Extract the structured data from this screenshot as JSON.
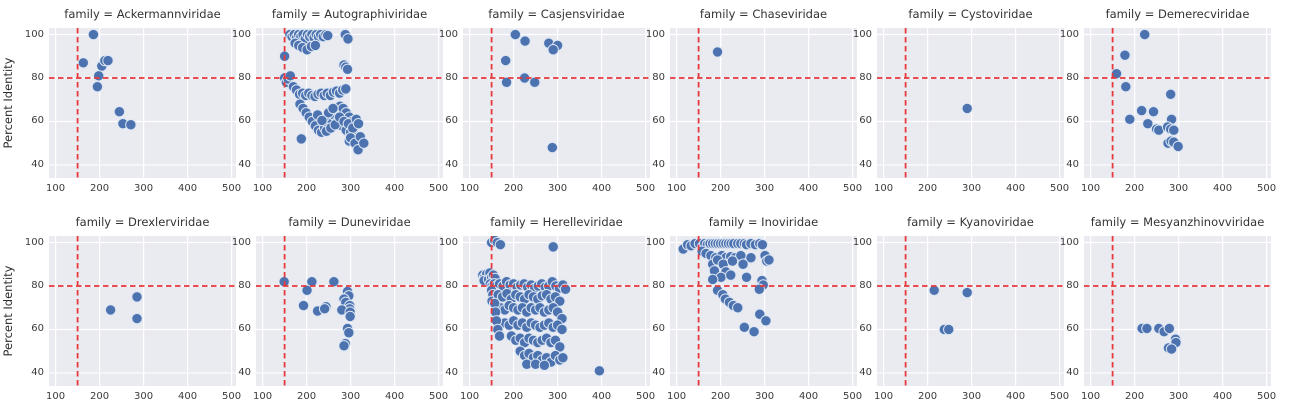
{
  "figure": {
    "ylabel": "Percent Identity",
    "facet_variable": "family",
    "rows": 2,
    "cols": 6
  },
  "colors": {
    "plot_bg": "#eaeaf1",
    "grid": "#ffffff",
    "point": "#4c72b0",
    "point_edge": "#dce6f2",
    "ref_line": "#e8393c",
    "text": "#2e2e2e"
  },
  "axes": {
    "x_ticks": [
      100,
      200,
      300,
      400,
      500
    ],
    "y_ticks": [
      100,
      80,
      60,
      40
    ],
    "xlim": [
      85,
      510
    ],
    "ylim": [
      34,
      103
    ],
    "ref_vline_x": 150,
    "ref_hline_y": 80,
    "grid": "on"
  },
  "chart_data": [
    {
      "type": "scatter",
      "family": "Ackermannviridae",
      "title": "family = Ackermannviridae",
      "points": [
        [
          186,
          100
        ],
        [
          163,
          87
        ],
        [
          205,
          85.5
        ],
        [
          212,
          88
        ],
        [
          219,
          88
        ],
        [
          198,
          81
        ],
        [
          195,
          76
        ],
        [
          245,
          64.5
        ],
        [
          253,
          59
        ],
        [
          271,
          58.5
        ]
      ]
    },
    {
      "type": "scatter",
      "family": "Autographiviridae",
      "title": "family = Autographiviridae",
      "points": [
        [
          162,
          100
        ],
        [
          167,
          99
        ],
        [
          172,
          100
        ],
        [
          177,
          98.5
        ],
        [
          182,
          100
        ],
        [
          187,
          99
        ],
        [
          192,
          100
        ],
        [
          197,
          98
        ],
        [
          202,
          100
        ],
        [
          207,
          99
        ],
        [
          212,
          100
        ],
        [
          217,
          98.5
        ],
        [
          222,
          100
        ],
        [
          227,
          99
        ],
        [
          232,
          100
        ],
        [
          238,
          99
        ],
        [
          244,
          100
        ],
        [
          248,
          99.5
        ],
        [
          174,
          96
        ],
        [
          182,
          95
        ],
        [
          191,
          94
        ],
        [
          201,
          93
        ],
        [
          211,
          94.5
        ],
        [
          220,
          95
        ],
        [
          288,
          100
        ],
        [
          294,
          98
        ],
        [
          150,
          90
        ],
        [
          150,
          80
        ],
        [
          154,
          78
        ],
        [
          158,
          79.5
        ],
        [
          163,
          81
        ],
        [
          285,
          86
        ],
        [
          289,
          85
        ],
        [
          293,
          84
        ],
        [
          170,
          76
        ],
        [
          177,
          74.5
        ],
        [
          184,
          72.5
        ],
        [
          191,
          73
        ],
        [
          198,
          72
        ],
        [
          205,
          73
        ],
        [
          212,
          72
        ],
        [
          219,
          71.5
        ],
        [
          226,
          72.5
        ],
        [
          233,
          73
        ],
        [
          240,
          72
        ],
        [
          247,
          73
        ],
        [
          254,
          72
        ],
        [
          261,
          73.5
        ],
        [
          268,
          74
        ],
        [
          275,
          73
        ],
        [
          282,
          74.5
        ],
        [
          289,
          75
        ],
        [
          185,
          68
        ],
        [
          192,
          66
        ],
        [
          199,
          64
        ],
        [
          206,
          62
        ],
        [
          213,
          60
        ],
        [
          220,
          58
        ],
        [
          227,
          56
        ],
        [
          234,
          55
        ],
        [
          241,
          57
        ],
        [
          248,
          59
        ],
        [
          255,
          61
        ],
        [
          262,
          63
        ],
        [
          269,
          65
        ],
        [
          276,
          67
        ],
        [
          283,
          66
        ],
        [
          290,
          64
        ],
        [
          297,
          62
        ],
        [
          304,
          60
        ],
        [
          311,
          58
        ],
        [
          240,
          62
        ],
        [
          250,
          64
        ],
        [
          260,
          66
        ],
        [
          270,
          60
        ],
        [
          280,
          58
        ],
        [
          290,
          56
        ],
        [
          300,
          55
        ],
        [
          308,
          54
        ],
        [
          225,
          63
        ],
        [
          235,
          60.5
        ],
        [
          245,
          55.5
        ],
        [
          255,
          57
        ],
        [
          265,
          58.5
        ],
        [
          275,
          62
        ],
        [
          285,
          60
        ],
        [
          295,
          59
        ],
        [
          305,
          57
        ],
        [
          313,
          61
        ],
        [
          318,
          59
        ],
        [
          188,
          52
        ],
        [
          297,
          51
        ],
        [
          300,
          52.5
        ],
        [
          310,
          50
        ],
        [
          317,
          47
        ],
        [
          322,
          53
        ],
        [
          330,
          50
        ]
      ]
    },
    {
      "type": "scatter",
      "family": "Casjensviridae",
      "title": "family = Casjensviridae",
      "points": [
        [
          204,
          100
        ],
        [
          226,
          97
        ],
        [
          280,
          96
        ],
        [
          300,
          95
        ],
        [
          290,
          93
        ],
        [
          182,
          88
        ],
        [
          184,
          78
        ],
        [
          225,
          80
        ],
        [
          248,
          78
        ],
        [
          288,
          48
        ]
      ]
    },
    {
      "type": "scatter",
      "family": "Chaseviridae",
      "title": "family = Chaseviridae",
      "points": [
        [
          193,
          92
        ]
      ]
    },
    {
      "type": "scatter",
      "family": "Cystoviridae",
      "title": "family = Cystoviridae",
      "points": [
        [
          290,
          66
        ]
      ]
    },
    {
      "type": "scatter",
      "family": "Demerecviridae",
      "title": "family = Demerecviridae",
      "points": [
        [
          223,
          100
        ],
        [
          178,
          90.5
        ],
        [
          159,
          82
        ],
        [
          180,
          76
        ],
        [
          282,
          72.5
        ],
        [
          216,
          65
        ],
        [
          243,
          64.5
        ],
        [
          189,
          61
        ],
        [
          230,
          59
        ],
        [
          284,
          61
        ],
        [
          250,
          56.5
        ],
        [
          255,
          56
        ],
        [
          275,
          57.5
        ],
        [
          282,
          56.5
        ],
        [
          289,
          56
        ],
        [
          276,
          50
        ],
        [
          283,
          51
        ],
        [
          289,
          50.5
        ],
        [
          299,
          48.5
        ]
      ]
    },
    {
      "type": "scatter",
      "family": "Drexlerviridae",
      "title": "family = Drexlerviridae",
      "points": [
        [
          225,
          69
        ],
        [
          285,
          75
        ],
        [
          285,
          65
        ]
      ]
    },
    {
      "type": "scatter",
      "family": "Duneviridae",
      "title": "family = Duneviridae",
      "points": [
        [
          149,
          82
        ],
        [
          212,
          82
        ],
        [
          262,
          82
        ],
        [
          201,
          78
        ],
        [
          193,
          71
        ],
        [
          244,
          70.5
        ],
        [
          225,
          68.5
        ],
        [
          241,
          69.5
        ],
        [
          293,
          77.5
        ],
        [
          296,
          75.5
        ],
        [
          285,
          74
        ],
        [
          289,
          72.5
        ],
        [
          298,
          71
        ],
        [
          298,
          69.5
        ],
        [
          280,
          69
        ],
        [
          299,
          68
        ],
        [
          299,
          66
        ],
        [
          293,
          60.5
        ],
        [
          296,
          58.5
        ],
        [
          288,
          53.5
        ],
        [
          285,
          52.5
        ]
      ]
    },
    {
      "type": "scatter",
      "family": "Herelleviridae",
      "title": "family = Herelleviridae",
      "points": [
        [
          150,
          100
        ],
        [
          157,
          101
        ],
        [
          163,
          100
        ],
        [
          170,
          99
        ],
        [
          290,
          98
        ],
        [
          130,
          85
        ],
        [
          134,
          84
        ],
        [
          139,
          85.5
        ],
        [
          133,
          82.5
        ],
        [
          143,
          83
        ],
        [
          146,
          86
        ],
        [
          150,
          84
        ],
        [
          154,
          85
        ],
        [
          158,
          83.5
        ],
        [
          147,
          81
        ],
        [
          151,
          80
        ],
        [
          156,
          81
        ],
        [
          161,
          80
        ],
        [
          150,
          78
        ],
        [
          153,
          76
        ],
        [
          151,
          73
        ],
        [
          168,
          81
        ],
        [
          176,
          80
        ],
        [
          184,
          82
        ],
        [
          192,
          80.5
        ],
        [
          200,
          81
        ],
        [
          208,
          79.5
        ],
        [
          216,
          80.5
        ],
        [
          224,
          81
        ],
        [
          232,
          79.5
        ],
        [
          240,
          80.5
        ],
        [
          248,
          79
        ],
        [
          256,
          80
        ],
        [
          264,
          81
        ],
        [
          272,
          79.5
        ],
        [
          280,
          80
        ],
        [
          288,
          82
        ],
        [
          296,
          80
        ],
        [
          304,
          79
        ],
        [
          312,
          80.5
        ],
        [
          318,
          78.5
        ],
        [
          165,
          76
        ],
        [
          175,
          75
        ],
        [
          185,
          76.5
        ],
        [
          195,
          74
        ],
        [
          205,
          76
        ],
        [
          215,
          75
        ],
        [
          225,
          74
        ],
        [
          235,
          76
        ],
        [
          245,
          75
        ],
        [
          255,
          74
        ],
        [
          265,
          75.5
        ],
        [
          275,
          76
        ],
        [
          285,
          74
        ],
        [
          295,
          75
        ],
        [
          305,
          73
        ],
        [
          170,
          70
        ],
        [
          180,
          69
        ],
        [
          190,
          71
        ],
        [
          200,
          70
        ],
        [
          210,
          69
        ],
        [
          220,
          70
        ],
        [
          230,
          68
        ],
        [
          240,
          70
        ],
        [
          250,
          69
        ],
        [
          260,
          70
        ],
        [
          270,
          68
        ],
        [
          280,
          69
        ],
        [
          290,
          70
        ],
        [
          300,
          68
        ],
        [
          310,
          65
        ],
        [
          180,
          63
        ],
        [
          190,
          62
        ],
        [
          200,
          64
        ],
        [
          210,
          62
        ],
        [
          220,
          63
        ],
        [
          230,
          61
        ],
        [
          240,
          63
        ],
        [
          250,
          62
        ],
        [
          260,
          61
        ],
        [
          270,
          62
        ],
        [
          280,
          63
        ],
        [
          290,
          61
        ],
        [
          300,
          62
        ],
        [
          310,
          60
        ],
        [
          195,
          57
        ],
        [
          205,
          55
        ],
        [
          215,
          56
        ],
        [
          225,
          54
        ],
        [
          235,
          56
        ],
        [
          245,
          55
        ],
        [
          255,
          54
        ],
        [
          265,
          55
        ],
        [
          275,
          56
        ],
        [
          285,
          54
        ],
        [
          295,
          55
        ],
        [
          305,
          52
        ],
        [
          215,
          50
        ],
        [
          225,
          48
        ],
        [
          235,
          49
        ],
        [
          245,
          47
        ],
        [
          255,
          48
        ],
        [
          265,
          46
        ],
        [
          275,
          47
        ],
        [
          285,
          45
        ],
        [
          295,
          48
        ],
        [
          305,
          46
        ],
        [
          312,
          47
        ],
        [
          157,
          72
        ],
        [
          159,
          68
        ],
        [
          161,
          64
        ],
        [
          164,
          60
        ],
        [
          168,
          57
        ],
        [
          230,
          44
        ],
        [
          250,
          44
        ],
        [
          270,
          43.5
        ],
        [
          395,
          41
        ]
      ]
    },
    {
      "type": "scatter",
      "family": "Inoviridae",
      "title": "family = Inoviridae",
      "points": [
        [
          115,
          97
        ],
        [
          125,
          99
        ],
        [
          133,
          98.5
        ],
        [
          142,
          99.5
        ],
        [
          152,
          99.5
        ],
        [
          159,
          98
        ],
        [
          164,
          99.5
        ],
        [
          170,
          99
        ],
        [
          176,
          99.5
        ],
        [
          182,
          99.5
        ],
        [
          188,
          99.5
        ],
        [
          194,
          99.5
        ],
        [
          200,
          99.5
        ],
        [
          206,
          99.5
        ],
        [
          212,
          99.5
        ],
        [
          218,
          99.5
        ],
        [
          224,
          99.5
        ],
        [
          230,
          99.5
        ],
        [
          239,
          99.5
        ],
        [
          246,
          99.5
        ],
        [
          254,
          99.5
        ],
        [
          259,
          99
        ],
        [
          269,
          99.5
        ],
        [
          279,
          99
        ],
        [
          289,
          99.5
        ],
        [
          295,
          99
        ],
        [
          158,
          96
        ],
        [
          167,
          95
        ],
        [
          178,
          94
        ],
        [
          189,
          93
        ],
        [
          203,
          94
        ],
        [
          212,
          93
        ],
        [
          223,
          93.5
        ],
        [
          233,
          93
        ],
        [
          246,
          94
        ],
        [
          269,
          93
        ],
        [
          301,
          94
        ],
        [
          305,
          91.5
        ],
        [
          182,
          90
        ],
        [
          193,
          92
        ],
        [
          206,
          90
        ],
        [
          227,
          91.5
        ],
        [
          251,
          90
        ],
        [
          310,
          92
        ],
        [
          186,
          87
        ],
        [
          212,
          86.5
        ],
        [
          201,
          84
        ],
        [
          223,
          85
        ],
        [
          259,
          84
        ],
        [
          182,
          83
        ],
        [
          294,
          82.5
        ],
        [
          297,
          80.5
        ],
        [
          288,
          78.5
        ],
        [
          193,
          78
        ],
        [
          205,
          76
        ],
        [
          211,
          74
        ],
        [
          220,
          72.5
        ],
        [
          229,
          71
        ],
        [
          239,
          70
        ],
        [
          289,
          67
        ],
        [
          303,
          64
        ],
        [
          254,
          61
        ],
        [
          276,
          59
        ]
      ]
    },
    {
      "type": "scatter",
      "family": "Kyanoviridae",
      "title": "family = Kyanoviridae",
      "points": [
        [
          215,
          78
        ],
        [
          290,
          77
        ],
        [
          238,
          60
        ],
        [
          248,
          60
        ]
      ]
    },
    {
      "type": "scatter",
      "family": "Mesyanzhinovviridae",
      "title": "family = Mesyanzhinovviridae",
      "points": [
        [
          217,
          60.5
        ],
        [
          228,
          60.5
        ],
        [
          255,
          60.5
        ],
        [
          267,
          59
        ],
        [
          279,
          60.5
        ],
        [
          293,
          55.5
        ],
        [
          294,
          54
        ],
        [
          277,
          51.5
        ],
        [
          284,
          51
        ]
      ]
    }
  ]
}
